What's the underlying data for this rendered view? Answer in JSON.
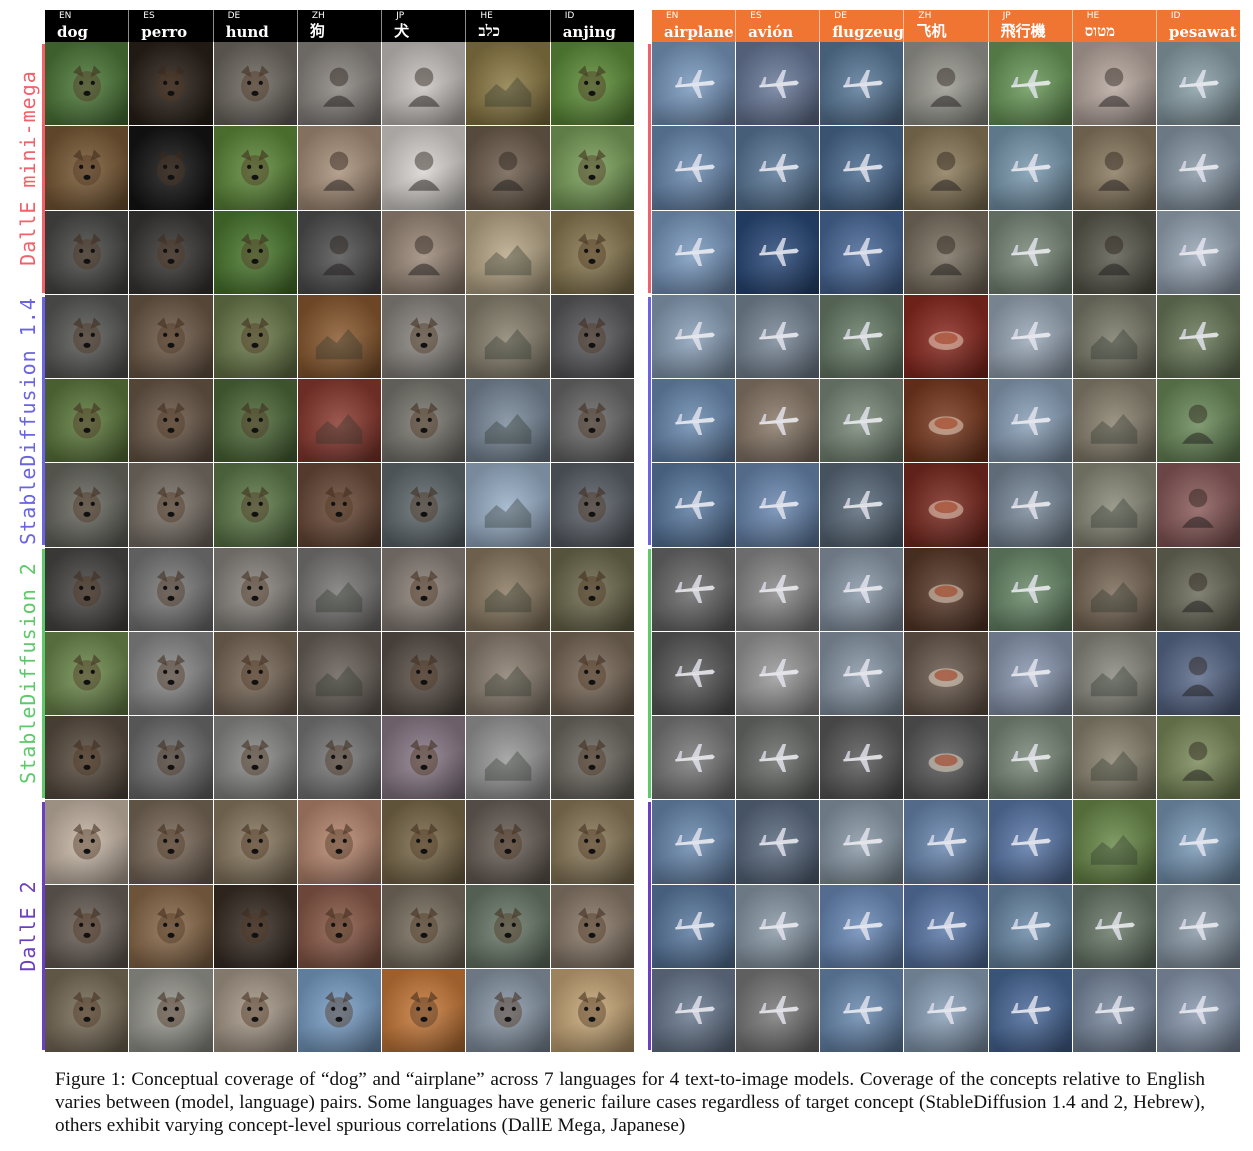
{
  "left_panel": {
    "concept": "dog",
    "header_color": "#000000",
    "columns": [
      {
        "code": "EN",
        "word": "dog"
      },
      {
        "code": "ES",
        "word": "perro"
      },
      {
        "code": "DE",
        "word": "hund"
      },
      {
        "code": "ZH",
        "word": "狗"
      },
      {
        "code": "JP",
        "word": "犬"
      },
      {
        "code": "HE",
        "word": "כלב"
      },
      {
        "code": "ID",
        "word": "anjing"
      }
    ]
  },
  "right_panel": {
    "concept": "airplane",
    "header_color": "#f07532",
    "columns": [
      {
        "code": "EN",
        "word": "airplane"
      },
      {
        "code": "ES",
        "word": "avión"
      },
      {
        "code": "DE",
        "word": "flugzeug"
      },
      {
        "code": "ZH",
        "word": "飞机"
      },
      {
        "code": "JP",
        "word": "飛行機"
      },
      {
        "code": "HE",
        "word": "מטוס"
      },
      {
        "code": "ID",
        "word": "pesawat"
      }
    ]
  },
  "models": [
    {
      "name": "DallE mini-mega",
      "color": "#f0616a"
    },
    {
      "name": "StableDiffusion 1.4",
      "color": "#6a64e0"
    },
    {
      "name": "StableDiffusion 2",
      "color": "#5dc96a"
    },
    {
      "name": "DallE 2",
      "color": "#6a3fc2"
    }
  ],
  "caption": {
    "label": "Figure 1:",
    "text": "Conceptual coverage of “dog” and “airplane” across 7 languages for 4 text-to-image models. Coverage of the concepts relative to English varies between (model, language) pairs. Some languages have generic failure cases regardless of target concept (StableDiffusion 1.4 and 2, Hebrew), others exhibit varying concept-level spurious correlations (DallE Mega, Japanese)"
  }
}
